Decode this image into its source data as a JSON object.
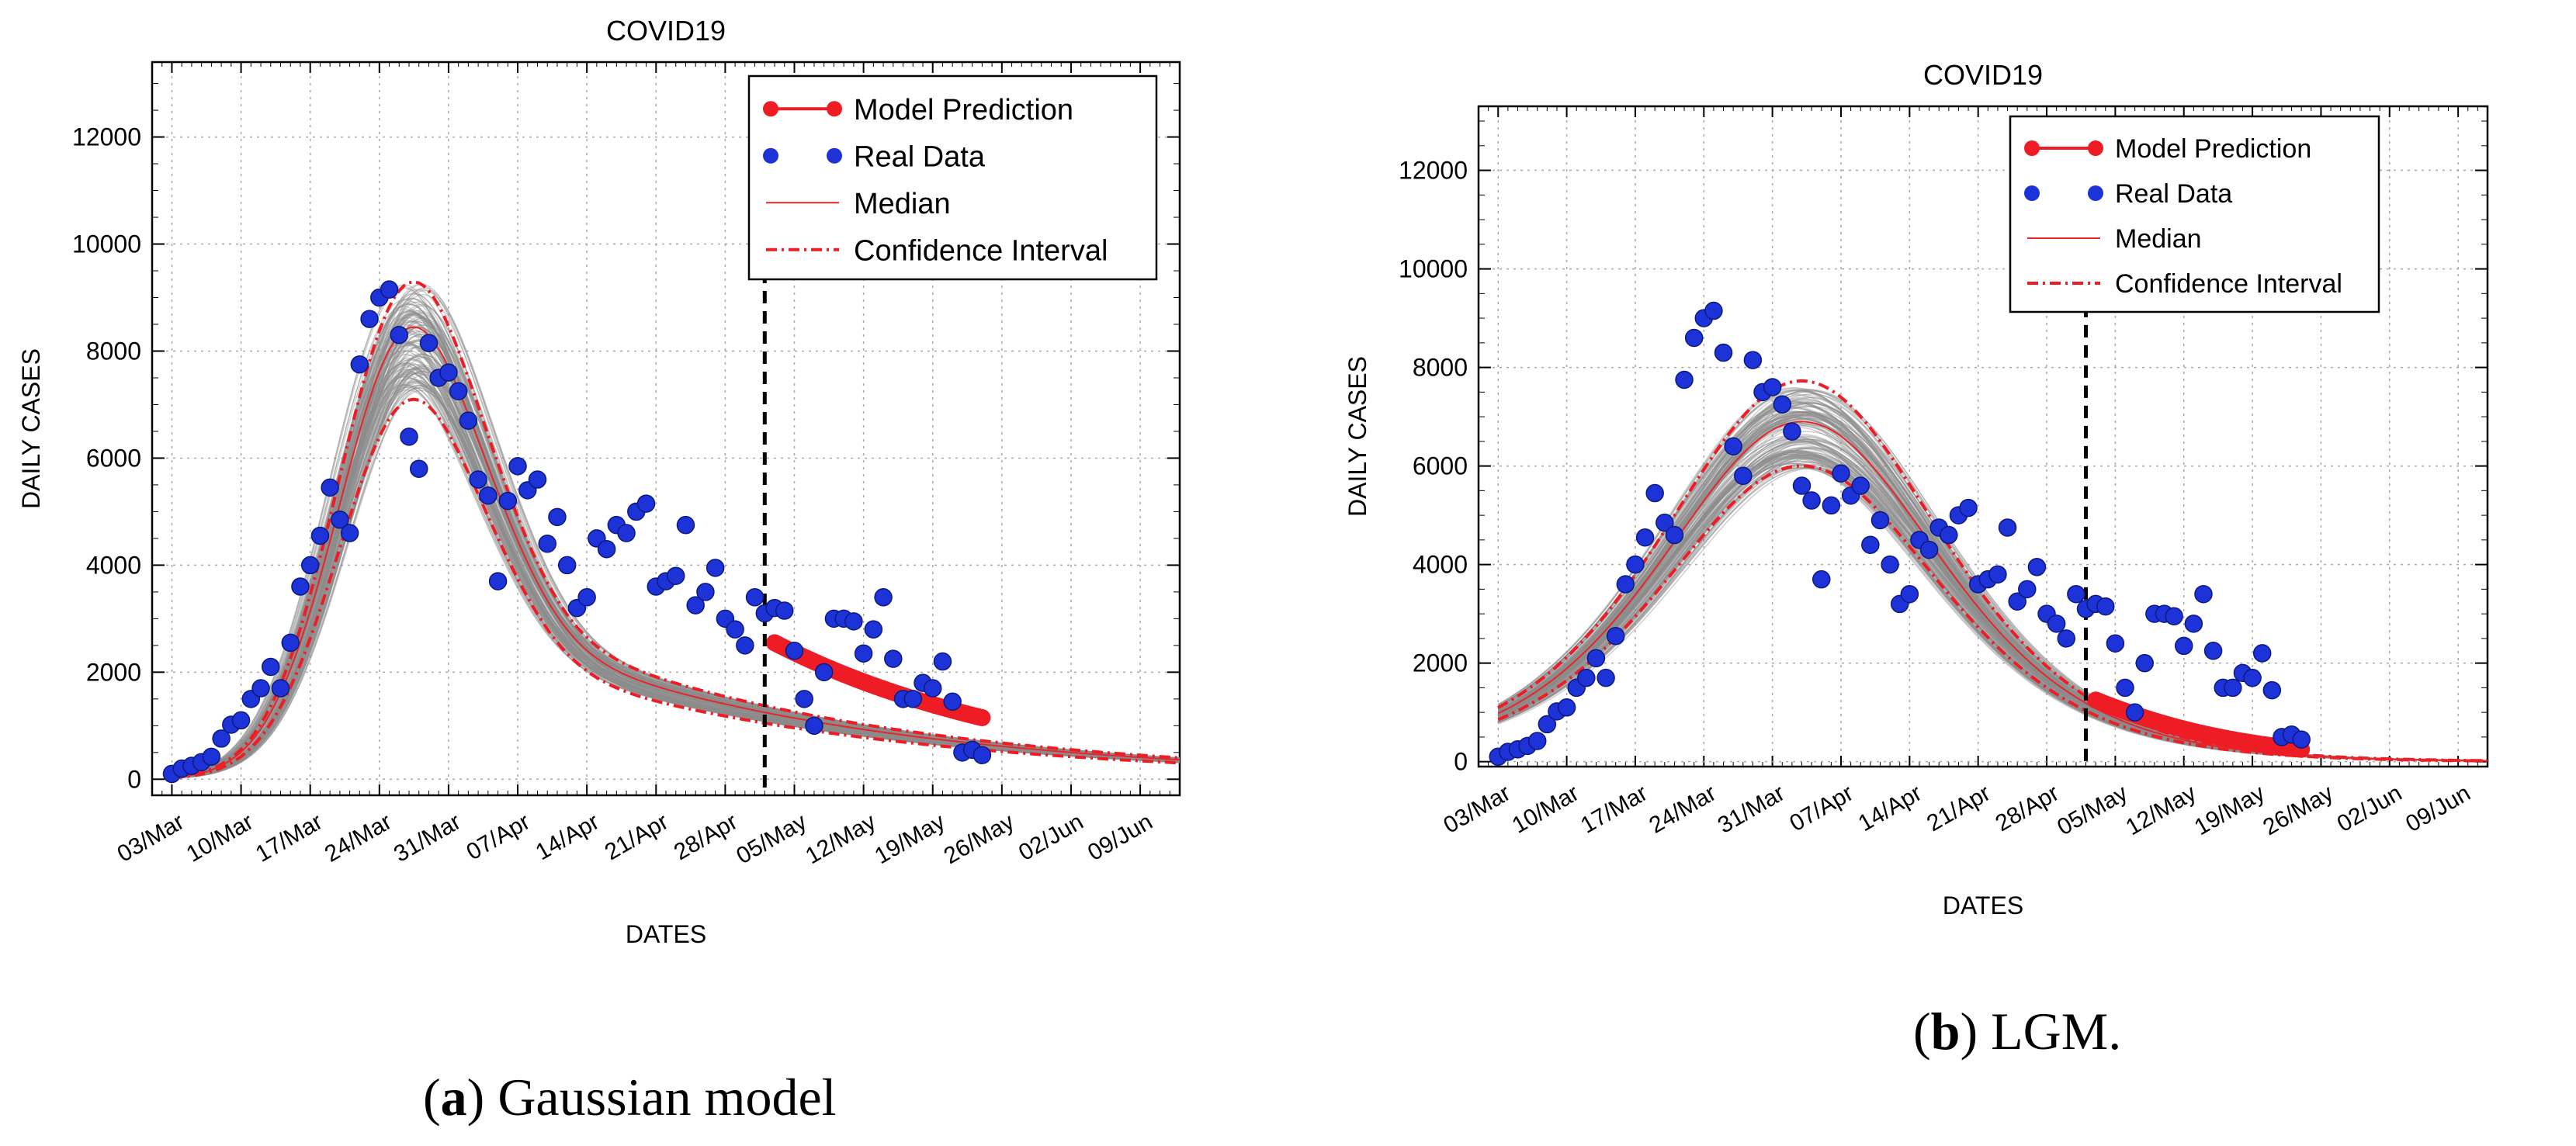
{
  "colors": {
    "prediction": "#ee1c24",
    "real": "#1d33d8",
    "median": "#e8262a",
    "ci": "#ee1c24",
    "ensemble": "#8c8c8c",
    "divider": "#000000"
  },
  "panels": [
    {
      "caption_letter": "a",
      "caption_rest": " Gaussian model",
      "chart_data": {
        "type": "line",
        "model": "gaussian",
        "title": "COVID19",
        "xlabel": "DATES",
        "ylabel": "DAILY CASES",
        "ylim": [
          -300,
          13400
        ],
        "yticks": [
          0,
          2000,
          4000,
          6000,
          8000,
          10000,
          12000
        ],
        "xlim": [
          "2020-03-01",
          "2020-06-13"
        ],
        "xticks": [
          "03/Mar",
          "10/Mar",
          "17/Mar",
          "24/Mar",
          "31/Mar",
          "07/Apr",
          "14/Apr",
          "21/Apr",
          "28/Apr",
          "05/May",
          "12/May",
          "19/May",
          "26/May",
          "02/Jun",
          "09/Jun"
        ],
        "grid": true,
        "legend_position": "top-right",
        "legend": [
          "Model Prediction",
          "Real Data",
          "Median",
          "Confidence Interval"
        ],
        "forecast_start": "2020-05-02",
        "real_data": {
          "start": "2020-03-03",
          "values": [
            100,
            200,
            250,
            320,
            420,
            760,
            1020,
            1100,
            1500,
            1700,
            2100,
            1700,
            2550,
            3600,
            4000,
            4550,
            5450,
            4850,
            4600,
            7750,
            8600,
            9000,
            9150,
            8300,
            6400,
            5800,
            8150,
            7500,
            7600,
            7250,
            6700,
            5600,
            5300,
            3700,
            5200,
            5850,
            5400,
            5600,
            4400,
            4900,
            4000,
            3200,
            3400,
            4500,
            4300,
            4750,
            4600,
            5000,
            5150,
            3600,
            3700,
            3800,
            4750,
            3250,
            3500,
            3950,
            3000,
            2800,
            2500,
            3400,
            3100,
            3200,
            3150,
            2400,
            1500,
            1000,
            2000,
            3000,
            3000,
            2950,
            2350,
            2800,
            3400,
            2250,
            1500,
            1500,
            1800,
            1700,
            2200,
            1450,
            500,
            550,
            450
          ],
          "end": "2020-05-24"
        },
        "model_prediction": {
          "start": "2020-05-03",
          "end": "2020-05-24",
          "first": 2550,
          "last": 1150
        },
        "median": {
          "start": "2020-03-03",
          "end": "2020-06-13",
          "peak_date": "2020-03-27",
          "peak": 8200,
          "at_2020-05-02": 2600,
          "at_2020-05-24": 1200,
          "at_2020-06-13": 300
        },
        "confidence_interval": {
          "peak_upper": 9000,
          "peak_lower": 6900,
          "end_upper": 700,
          "end_lower": 0
        }
      }
    },
    {
      "caption_letter": "b",
      "caption_rest": " LGM.",
      "chart_data": {
        "type": "line",
        "model": "LGM",
        "title": "COVID19",
        "xlabel": "DATES",
        "ylabel": "DAILY CASES",
        "ylim": [
          -100,
          13300
        ],
        "yticks": [
          0,
          2000,
          4000,
          6000,
          8000,
          10000,
          12000
        ],
        "xlim": [
          "2020-03-01",
          "2020-06-12"
        ],
        "xticks": [
          "03/Mar",
          "10/Mar",
          "17/Mar",
          "24/Mar",
          "31/Mar",
          "07/Apr",
          "14/Apr",
          "21/Apr",
          "28/Apr",
          "05/May",
          "12/May",
          "19/May",
          "26/May",
          "02/Jun",
          "09/Jun"
        ],
        "grid": true,
        "legend_position": "top-right",
        "legend": [
          "Model Prediction",
          "Real Data",
          "Median",
          "Confidence Interval"
        ],
        "forecast_start": "2020-05-02",
        "real_data": {
          "start": "2020-03-03",
          "values": [
            100,
            200,
            250,
            320,
            420,
            760,
            1020,
            1100,
            1500,
            1700,
            2100,
            1700,
            2550,
            3600,
            4000,
            4550,
            5450,
            4850,
            4600,
            7750,
            8600,
            9000,
            9150,
            8300,
            6400,
            5800,
            8150,
            7500,
            7600,
            7250,
            6700,
            5600,
            5300,
            3700,
            5200,
            5850,
            5400,
            5600,
            4400,
            4900,
            4000,
            3200,
            3400,
            4500,
            4300,
            4750,
            4600,
            5000,
            5150,
            3600,
            3700,
            3800,
            4750,
            3250,
            3500,
            3950,
            3000,
            2800,
            2500,
            3400,
            3100,
            3200,
            3150,
            2400,
            1500,
            1000,
            2000,
            3000,
            3000,
            2950,
            2350,
            2800,
            3400,
            2250,
            1500,
            1500,
            1800,
            1700,
            2200,
            1450,
            500,
            550,
            450
          ],
          "end": "2020-05-24"
        },
        "model_prediction": {
          "start": "2020-05-03",
          "end": "2020-05-24",
          "first": 1250,
          "last": 250
        },
        "median": {
          "start": "2020-03-03",
          "end": "2020-06-12",
          "peak_date": "2020-04-03",
          "peak": 6900,
          "at_2020-03-03": 1300,
          "at_2020-05-02": 1300,
          "at_2020-05-24": 250,
          "at_2020-06-12": 10
        },
        "confidence_interval": {
          "peak_upper": 7700,
          "peak_lower": 6000,
          "start_upper": 1650,
          "start_lower": 950
        }
      }
    }
  ]
}
